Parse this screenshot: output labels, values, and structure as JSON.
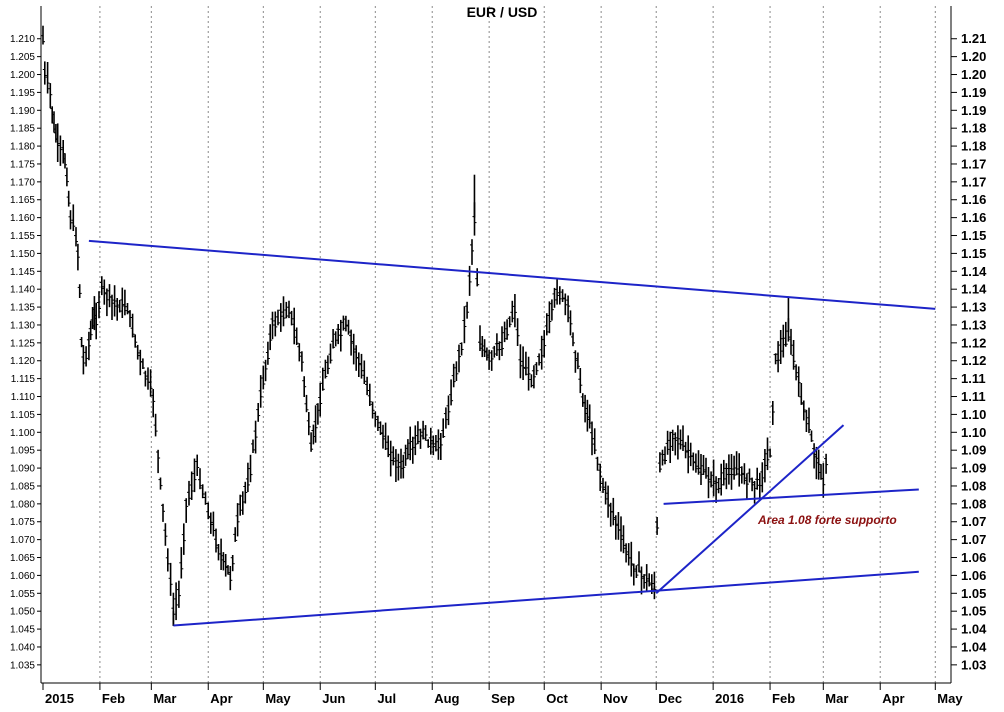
{
  "chart_data": {
    "type": "candlestick-bar",
    "title": "EUR / USD",
    "xlabel": "",
    "ylabel": "",
    "ylim": [
      1.03,
      1.213
    ],
    "grid": true,
    "y_ticks_left": [
      "1.035",
      "1.040",
      "1.045",
      "1.050",
      "1.055",
      "1.060",
      "1.065",
      "1.070",
      "1.075",
      "1.080",
      "1.085",
      "1.090",
      "1.095",
      "1.100",
      "1.105",
      "1.110",
      "1.115",
      "1.120",
      "1.125",
      "1.130",
      "1.135",
      "1.140",
      "1.145",
      "1.150",
      "1.155",
      "1.160",
      "1.165",
      "1.170",
      "1.175",
      "1.180",
      "1.185",
      "1.190",
      "1.195",
      "1.200",
      "1.205",
      "1.210"
    ],
    "y_ticks_right": [
      "1.03",
      "1.04",
      "1.04",
      "1.05",
      "1.05",
      "1.06",
      "1.06",
      "1.07",
      "1.07",
      "1.08",
      "1.08",
      "1.09",
      "1.09",
      "1.10",
      "1.10",
      "1.11",
      "1.11",
      "1.12",
      "1.12",
      "1.13",
      "1.13",
      "1.14",
      "1.14",
      "1.15",
      "1.15",
      "1.16",
      "1.16",
      "1.17",
      "1.17",
      "1.18",
      "1.18",
      "1.19",
      "1.19",
      "1.20",
      "1.20",
      "1.21"
    ],
    "x_labels": [
      "2015",
      "Feb",
      "Mar",
      "Apr",
      "May",
      "Jun",
      "Jul",
      "Aug",
      "Sep",
      "Oct",
      "Nov",
      "Dec",
      "2016",
      "Feb",
      "Mar",
      "Apr",
      "May"
    ],
    "series": [
      {
        "name": "",
        "x": [
          "2015-01-01",
          "2015-01-02",
          "2015-01-05",
          "2015-01-06",
          "2015-01-07",
          "2015-01-08",
          "2015-01-09",
          "2015-01-12",
          "2015-01-13",
          "2015-01-14",
          "2015-01-15",
          "2015-01-16",
          "2015-01-19",
          "2015-01-20",
          "2015-01-21",
          "2015-01-22",
          "2015-01-23",
          "2015-01-26",
          "2015-01-27",
          "2015-01-28",
          "2015-01-29",
          "2015-01-30",
          "2015-02-02",
          "2015-02-09",
          "2015-02-16",
          "2015-02-23",
          "2015-03-02",
          "2015-03-06",
          "2015-03-10",
          "2015-03-13",
          "2015-03-16",
          "2015-03-20",
          "2015-03-26",
          "2015-04-01",
          "2015-04-08",
          "2015-04-13",
          "2015-04-17",
          "2015-04-24",
          "2015-05-01",
          "2015-05-06",
          "2015-05-15",
          "2015-05-22",
          "2015-05-27",
          "2015-06-01",
          "2015-06-08",
          "2015-06-15",
          "2015-06-22",
          "2015-07-01",
          "2015-07-08",
          "2015-07-15",
          "2015-07-20",
          "2015-07-27",
          "2015-08-03",
          "2015-08-07",
          "2015-08-17",
          "2015-08-20",
          "2015-08-24",
          "2015-08-27",
          "2015-09-01",
          "2015-09-08",
          "2015-09-15",
          "2015-09-18",
          "2015-09-24",
          "2015-10-01",
          "2015-10-08",
          "2015-10-14",
          "2015-10-22",
          "2015-10-27",
          "2015-11-02",
          "2015-11-09",
          "2015-11-16",
          "2015-11-23",
          "2015-11-30",
          "2015-12-03",
          "2015-12-10",
          "2015-12-17",
          "2015-12-24",
          "2016-01-04",
          "2016-01-11",
          "2016-01-18",
          "2016-01-25",
          "2016-02-01",
          "2016-02-04",
          "2016-02-11",
          "2016-02-18",
          "2016-02-25",
          "2016-03-01",
          "2016-03-04"
        ],
        "values": [
          1.21,
          1.2,
          1.195,
          1.19,
          1.185,
          1.183,
          1.18,
          1.178,
          1.176,
          1.172,
          1.165,
          1.16,
          1.155,
          1.15,
          1.14,
          1.125,
          1.12,
          1.125,
          1.128,
          1.13,
          1.133,
          1.132,
          1.14,
          1.136,
          1.135,
          1.12,
          1.11,
          1.085,
          1.065,
          1.05,
          1.055,
          1.08,
          1.09,
          1.078,
          1.065,
          1.06,
          1.075,
          1.09,
          1.115,
          1.13,
          1.135,
          1.12,
          1.095,
          1.11,
          1.125,
          1.13,
          1.12,
          1.105,
          1.095,
          1.09,
          1.095,
          1.1,
          1.095,
          1.1,
          1.125,
          1.135,
          1.16,
          1.125,
          1.12,
          1.125,
          1.135,
          1.12,
          1.115,
          1.125,
          1.14,
          1.135,
          1.11,
          1.1,
          1.085,
          1.075,
          1.065,
          1.06,
          1.057,
          1.09,
          1.1,
          1.095,
          1.09,
          1.085,
          1.09,
          1.088,
          1.085,
          1.095,
          1.12,
          1.128,
          1.11,
          1.095,
          1.087,
          1.095
        ]
      }
    ],
    "trendlines": [
      {
        "name": "",
        "x": [
          "2015-01-26",
          "2016-05-01"
        ],
        "y": [
          1.1535,
          1.1345
        ]
      },
      {
        "name": "",
        "x": [
          "2015-03-13",
          "2016-04-22"
        ],
        "y": [
          1.046,
          1.061
        ]
      },
      {
        "name": "",
        "x": [
          "2015-12-01",
          "2016-03-12"
        ],
        "y": [
          1.055,
          1.102
        ]
      },
      {
        "name": "",
        "x": [
          "2015-12-05",
          "2016-04-22"
        ],
        "y": [
          1.08,
          1.084
        ]
      }
    ],
    "annotations": [
      {
        "text": "Area 1.08 forte supporto",
        "x": "2016-02-20",
        "y": 1.076
      }
    ],
    "colors": {
      "bars": "#000000",
      "trendline": "#1d24c8",
      "grid": "#8a8a8a",
      "annotation": "#8b1010"
    }
  }
}
